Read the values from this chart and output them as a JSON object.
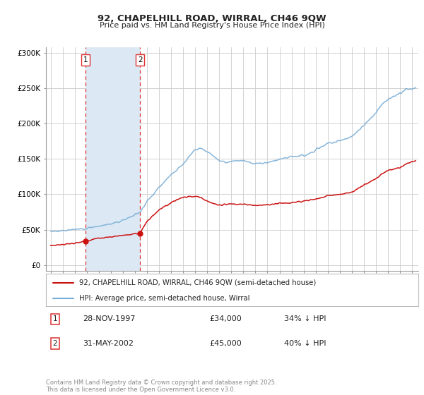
{
  "title_line1": "92, CHAPELHILL ROAD, WIRRAL, CH46 9QW",
  "title_line2": "Price paid vs. HM Land Registry's House Price Index (HPI)",
  "yticks": [
    0,
    50000,
    100000,
    150000,
    200000,
    250000,
    300000
  ],
  "ytick_labels": [
    "£0",
    "£50K",
    "£100K",
    "£150K",
    "£200K",
    "£250K",
    "£300K"
  ],
  "ylim": [
    -8000,
    308000
  ],
  "xlim_start": 1994.6,
  "xlim_end": 2025.5,
  "hpi_color": "#7aaed6",
  "price_color": "#cc1111",
  "vline_color": "#dd3333",
  "shade_color": "#dce9f5",
  "background_color": "#ffffff",
  "grid_color": "#cccccc",
  "legend_label_price": "92, CHAPELHILL ROAD, WIRRAL, CH46 9QW (semi-detached house)",
  "legend_label_hpi": "HPI: Average price, semi-detached house, Wirral",
  "sale1_date": "28-NOV-1997",
  "sale1_price": "£34,000",
  "sale1_hpi": "34% ↓ HPI",
  "sale1_year": 1997.91,
  "sale1_value": 34000,
  "sale2_date": "31-MAY-2002",
  "sale2_price": "£45,000",
  "sale2_hpi": "40% ↓ HPI",
  "sale2_year": 2002.42,
  "sale2_value": 45000,
  "footnote": "Contains HM Land Registry data © Crown copyright and database right 2025.\nThis data is licensed under the Open Government Licence v3.0.",
  "xtick_years": [
    1995,
    1996,
    1997,
    1998,
    1999,
    2000,
    2001,
    2002,
    2003,
    2004,
    2005,
    2006,
    2007,
    2008,
    2009,
    2010,
    2011,
    2012,
    2013,
    2014,
    2015,
    2016,
    2017,
    2018,
    2019,
    2020,
    2021,
    2022,
    2023,
    2024,
    2025
  ]
}
